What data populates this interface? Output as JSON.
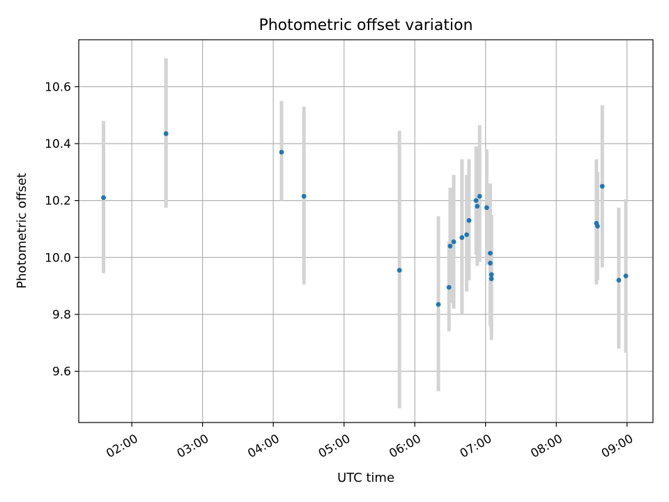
{
  "chart_data": {
    "type": "scatter",
    "title": "Photometric offset variation",
    "xlabel": "UTC time",
    "ylabel": "Photometric offset",
    "x_unit": "time-of-day",
    "xlim": [
      "01:15",
      "09:22"
    ],
    "ylim": [
      9.42,
      10.765
    ],
    "grid": true,
    "x_ticks": [
      "02:00",
      "03:00",
      "04:00",
      "05:00",
      "06:00",
      "07:00",
      "08:00",
      "09:00"
    ],
    "y_ticks": [
      9.6,
      9.8,
      10.0,
      10.2,
      10.4,
      10.6
    ],
    "y_tick_labels": [
      "9.6",
      "9.8",
      "10.0",
      "10.2",
      "10.4",
      "10.6"
    ],
    "marker_color": "#1f77b4",
    "errorbar_color": "#d3d3d3",
    "points": [
      {
        "x": "01:36",
        "y": 10.21,
        "err_low": 9.945,
        "err_high": 10.48
      },
      {
        "x": "02:29",
        "y": 10.435,
        "err_low": 10.175,
        "err_high": 10.7
      },
      {
        "x": "04:07",
        "y": 10.37,
        "err_low": 10.2,
        "err_high": 10.55
      },
      {
        "x": "04:26",
        "y": 10.215,
        "err_low": 9.905,
        "err_high": 10.53
      },
      {
        "x": "05:47",
        "y": 9.955,
        "err_low": 9.47,
        "err_high": 10.445
      },
      {
        "x": "06:20",
        "y": 9.835,
        "err_low": 9.53,
        "err_high": 10.145
      },
      {
        "x": "06:29",
        "y": 9.895,
        "err_low": 9.74,
        "err_high": 10.055
      },
      {
        "x": "06:30",
        "y": 10.04,
        "err_low": 9.84,
        "err_high": 10.245
      },
      {
        "x": "06:33",
        "y": 10.055,
        "err_low": 9.82,
        "err_high": 10.29
      },
      {
        "x": "06:40",
        "y": 10.07,
        "err_low": 9.8,
        "err_high": 10.345
      },
      {
        "x": "06:44",
        "y": 10.08,
        "err_low": 9.88,
        "err_high": 10.29
      },
      {
        "x": "06:46",
        "y": 10.13,
        "err_low": 9.92,
        "err_high": 10.345
      },
      {
        "x": "06:52",
        "y": 10.2,
        "err_low": 10.01,
        "err_high": 10.39
      },
      {
        "x": "06:53",
        "y": 10.18,
        "err_low": 9.97,
        "err_high": 10.39
      },
      {
        "x": "06:55",
        "y": 10.215,
        "err_low": 9.985,
        "err_high": 10.465
      },
      {
        "x": "07:01",
        "y": 10.175,
        "err_low": 9.975,
        "err_high": 10.38
      },
      {
        "x": "07:04",
        "y": 10.015,
        "err_low": 9.78,
        "err_high": 10.26
      },
      {
        "x": "07:04",
        "y": 9.98,
        "err_low": 9.76,
        "err_high": 10.21
      },
      {
        "x": "07:05",
        "y": 9.94,
        "err_low": 9.74,
        "err_high": 10.145
      },
      {
        "x": "07:05",
        "y": 9.925,
        "err_low": 9.71,
        "err_high": 10.15
      },
      {
        "x": "08:34",
        "y": 10.12,
        "err_low": 9.905,
        "err_high": 10.345
      },
      {
        "x": "08:35",
        "y": 10.11,
        "err_low": 9.92,
        "err_high": 10.3
      },
      {
        "x": "08:39",
        "y": 10.25,
        "err_low": 9.965,
        "err_high": 10.535
      },
      {
        "x": "08:53",
        "y": 9.92,
        "err_low": 9.68,
        "err_high": 10.175
      },
      {
        "x": "08:59",
        "y": 9.935,
        "err_low": 9.665,
        "err_high": 10.205
      }
    ]
  }
}
